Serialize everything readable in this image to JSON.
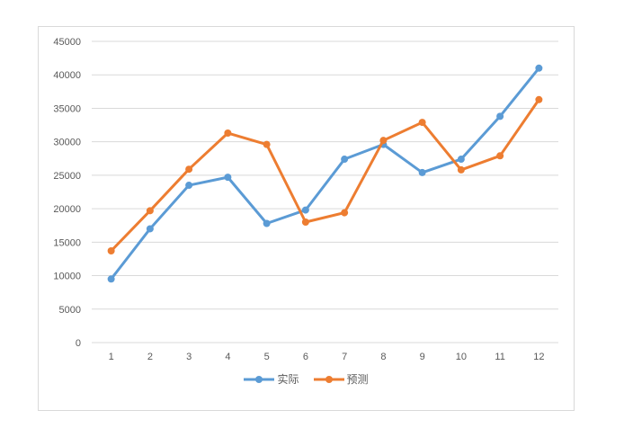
{
  "chart_data": {
    "type": "line",
    "categories": [
      "1",
      "2",
      "3",
      "4",
      "5",
      "6",
      "7",
      "8",
      "9",
      "10",
      "11",
      "12"
    ],
    "series": [
      {
        "id": "actual",
        "name": "实际",
        "color": "#5B9BD5",
        "values": [
          9500,
          17000,
          23500,
          24700,
          17800,
          19800,
          27400,
          29600,
          25400,
          27400,
          33800,
          41000
        ]
      },
      {
        "id": "forecast",
        "name": "预测",
        "color": "#ED7D31",
        "values": [
          13700,
          19700,
          25900,
          31300,
          29600,
          18000,
          19400,
          30200,
          32900,
          25800,
          27900,
          36300
        ]
      }
    ],
    "title": "",
    "xlabel": "",
    "ylabel": "",
    "ylim": [
      0,
      45000
    ],
    "ytick_step": 5000,
    "yticks": [
      0,
      5000,
      10000,
      15000,
      20000,
      25000,
      30000,
      35000,
      40000,
      45000
    ],
    "grid": true,
    "legend_position": "bottom",
    "colors": {
      "grid": "#d9d9d9",
      "frame_border": "#d9d9d9",
      "tick_text": "#595959",
      "background": "#ffffff"
    }
  }
}
